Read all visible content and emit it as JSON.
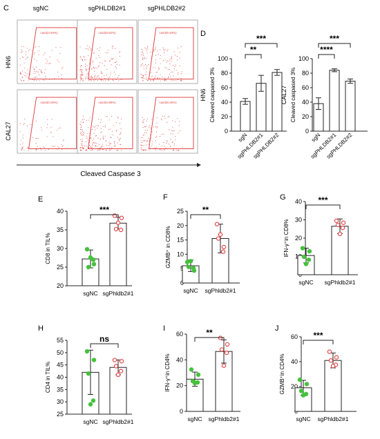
{
  "panel_letters": [
    "C",
    "D",
    "E",
    "F",
    "G",
    "H",
    "I",
    "J"
  ],
  "flow": {
    "col_labels": [
      "sgNC",
      "sgPHLDB2#1",
      "sgPHLDB2#2"
    ],
    "row_labels": [
      "HN6",
      "CAL27"
    ],
    "gate_texts": [
      [
        "cas3(4.94%)",
        "cas3(8.62%)",
        "cas3(9.40%)"
      ],
      [
        "cas3(0.00%)",
        "cas3(0.88%)",
        "cas3(9.45%)"
      ]
    ],
    "xlabel": "Cleaved   Caspase 3"
  },
  "colors": {
    "bar_edge": "#222222",
    "green_dot": "#44c23a",
    "red_dot": "#e04848",
    "flow_dot": "#e04848",
    "gate": "#e04848"
  },
  "chart_data": [
    {
      "id": "D-HN6",
      "type": "bar",
      "side_label": "HN6",
      "categories": [
        "sgN",
        "sgPHLDB2#1",
        "sgPHLDB2#2"
      ],
      "values": [
        41,
        66,
        81
      ],
      "errors": [
        4,
        11,
        4
      ],
      "ylabel": "Cleaved caspased 3%",
      "ylim": [
        0,
        100
      ],
      "yticks": [
        0,
        20,
        40,
        60,
        80,
        100
      ],
      "sig": [
        {
          "from": 0,
          "to": 1,
          "label": "**"
        },
        {
          "from": 0,
          "to": 2,
          "label": "***"
        }
      ]
    },
    {
      "id": "D-CAL27",
      "type": "bar",
      "side_label": "CAL27",
      "categories": [
        "sgN",
        "sgPHLDB2#1",
        "sgPHLDB2#2"
      ],
      "values": [
        38,
        84,
        69
      ],
      "errors": [
        8,
        2,
        3
      ],
      "ylabel": "Cleaved caspased 3%",
      "ylim": [
        0,
        100
      ],
      "yticks": [
        0,
        20,
        40,
        60,
        80,
        100
      ],
      "sig": [
        {
          "from": 0,
          "to": 1,
          "label": "****"
        },
        {
          "from": 0,
          "to": 2,
          "label": "***"
        }
      ]
    },
    {
      "id": "E",
      "type": "bar",
      "categories": [
        "sgNC",
        "sgPhldb2#1"
      ],
      "values": [
        27.2,
        36.8
      ],
      "errors": [
        2.4,
        1.6
      ],
      "points": [
        [
          29.8,
          25.8,
          25.0,
          27.0,
          27.6
        ],
        [
          38.8,
          38.2,
          35.2,
          35.0,
          36.9
        ]
      ],
      "ylabel": "CD8 in TIL%",
      "ylim": [
        20,
        40
      ],
      "yticks": [
        20,
        25,
        30,
        35,
        40
      ],
      "sig": [
        {
          "from": 0,
          "to": 1,
          "label": "***"
        }
      ]
    },
    {
      "id": "F",
      "type": "bar",
      "categories": [
        "sgNC",
        "sgPhldb2#1"
      ],
      "values": [
        6,
        15.5
      ],
      "errors": [
        2,
        5
      ],
      "points": [
        [
          7.3,
          4.3,
          5.6,
          5.2,
          7.6
        ],
        [
          20.5,
          12.5,
          15.5,
          10.9,
          16.9
        ]
      ],
      "ylabel": "GZMB⁺ in CD8%",
      "ylim": [
        0,
        25
      ],
      "yticks": [
        0,
        5,
        10,
        15,
        20,
        25
      ],
      "sig": [
        {
          "from": 0,
          "to": 1,
          "label": "**"
        }
      ]
    },
    {
      "id": "G",
      "type": "bar",
      "categories": [
        "sgNC",
        "sgPhldb2#1"
      ],
      "values": [
        10.5,
        26.5
      ],
      "errors": [
        4,
        4
      ],
      "points": [
        [
          14.5,
          12.8,
          9.8,
          8.2,
          5.9
        ],
        [
          29.5,
          28.4,
          27.2,
          25.6,
          22.3
        ]
      ],
      "ylabel": "IFN-γ⁺in CD8%",
      "ylim": [
        0,
        40
      ],
      "yticks": [
        0,
        10,
        20,
        30,
        40
      ],
      "sig": [
        {
          "from": 0,
          "to": 1,
          "label": "***"
        }
      ]
    },
    {
      "id": "H",
      "type": "bar",
      "categories": [
        "sgNC",
        "sgPhldb2#1"
      ],
      "values": [
        42,
        44
      ],
      "errors": [
        9,
        3
      ],
      "points": [
        [
          50.5,
          47.0,
          41.5,
          30.5,
          29.0
        ],
        [
          47.0,
          46.5,
          44.5,
          42.5,
          41.0
        ]
      ],
      "ylabel": "CD4 in TIL%",
      "ylim": [
        25,
        55
      ],
      "yticks": [
        25,
        30,
        35,
        40,
        45,
        50,
        55
      ],
      "sig": [
        {
          "from": 0,
          "to": 1,
          "label": "ns"
        }
      ]
    },
    {
      "id": "I",
      "type": "bar",
      "categories": [
        "sgNC",
        "sgPhldb2#1"
      ],
      "values": [
        25,
        46.5
      ],
      "errors": [
        5.5,
        9
      ],
      "points": [
        [
          32.5,
          28.5,
          23.5,
          22.5,
          22.0
        ],
        [
          57.0,
          52.0,
          48.0,
          45.5,
          35.5
        ]
      ],
      "ylabel": "IFN-γ⁺in CD4%",
      "ylim": [
        0,
        60
      ],
      "yticks": [
        0,
        20,
        40,
        60
      ],
      "sig": [
        {
          "from": 0,
          "to": 1,
          "label": "**"
        }
      ]
    },
    {
      "id": "J",
      "type": "bar",
      "categories": [
        "sgNC",
        "sgPhldb2#1"
      ],
      "values": [
        19,
        41
      ],
      "errors": [
        6,
        6
      ],
      "points": [
        [
          25.5,
          22.0,
          16.5,
          14.0,
          13.0
        ],
        [
          48.0,
          43.5,
          41.0,
          37.5,
          36.5
        ]
      ],
      "ylabel": "GZMB⁺in CD4%",
      "ylim": [
        0,
        60
      ],
      "yticks": [
        0,
        20,
        40,
        60
      ],
      "sig": [
        {
          "from": 0,
          "to": 1,
          "label": "***"
        }
      ]
    }
  ]
}
